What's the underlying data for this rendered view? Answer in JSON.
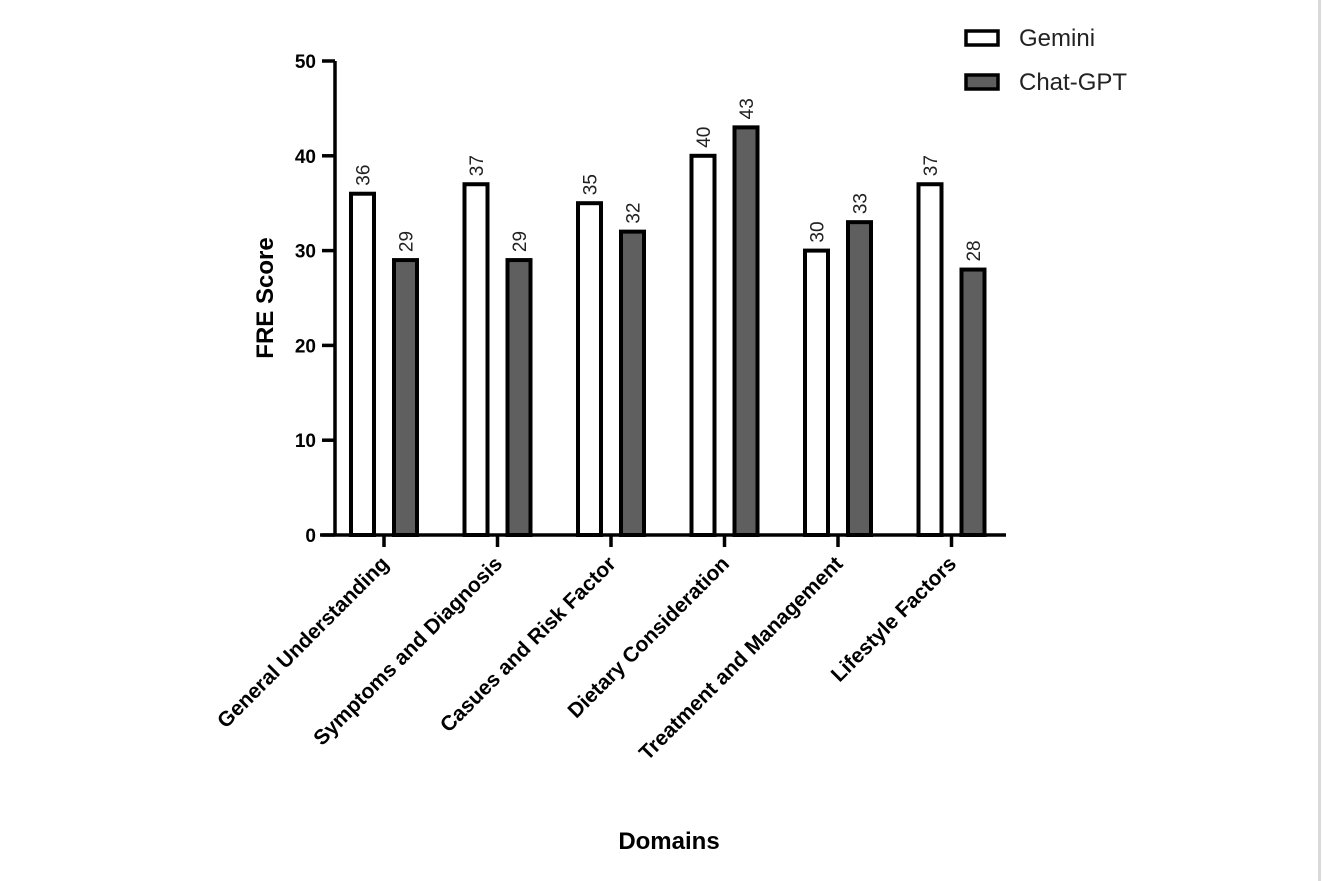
{
  "chart_data": {
    "type": "bar",
    "categories": [
      "General Understanding",
      "Symptoms and Diagnosis",
      "Casues and Risk Factor",
      "Dietary Consideration",
      "Treatment and Management",
      "Lifestyle Factors"
    ],
    "series": [
      {
        "name": "Gemini",
        "values": [
          36,
          37,
          35,
          40,
          30,
          37
        ],
        "color": "#ffffff"
      },
      {
        "name": "Chat-GPT",
        "values": [
          29,
          29,
          32,
          43,
          33,
          28
        ],
        "color": "#5f5f5f"
      }
    ],
    "title": "",
    "xlabel": "Domains",
    "ylabel": "FRE Score",
    "ylim": [
      0,
      50
    ],
    "yticks": [
      0,
      10,
      20,
      30,
      40,
      50
    ],
    "grid": false,
    "legend_position": "top-right",
    "data_labels": true,
    "outline_color": "#000000"
  }
}
